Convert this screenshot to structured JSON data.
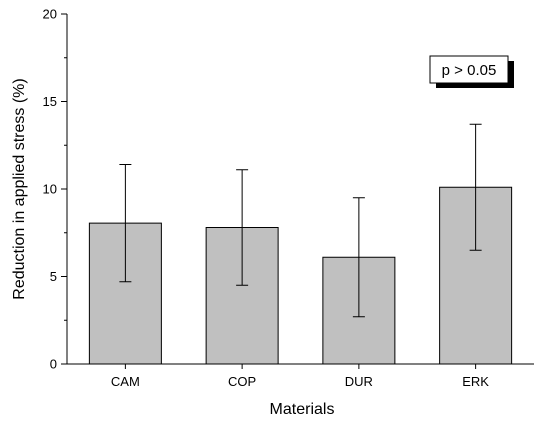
{
  "chart_data": {
    "type": "bar",
    "title": "",
    "xlabel": "Materials",
    "ylabel": "Reduction in applied stress (%)",
    "categories": [
      "CAM",
      "COP",
      "DUR",
      "ERK"
    ],
    "values": [
      8.05,
      7.8,
      6.1,
      10.1
    ],
    "error_low": [
      4.7,
      4.5,
      2.7,
      6.5
    ],
    "error_high": [
      11.4,
      11.1,
      9.5,
      13.7
    ],
    "ylim": [
      0,
      20
    ],
    "yticks": [
      "0",
      "5",
      "10",
      "15",
      "20"
    ],
    "minor_yticks": [
      2.5,
      7.5,
      12.5,
      17.5
    ],
    "grid": false,
    "annotation": "p > 0.05",
    "colors": {
      "bar_fill": "#c0c0c0",
      "bar_stroke": "#000000",
      "axis": "#000000",
      "annotation_shadow": "#000000",
      "annotation_box": "#ffffff"
    }
  }
}
